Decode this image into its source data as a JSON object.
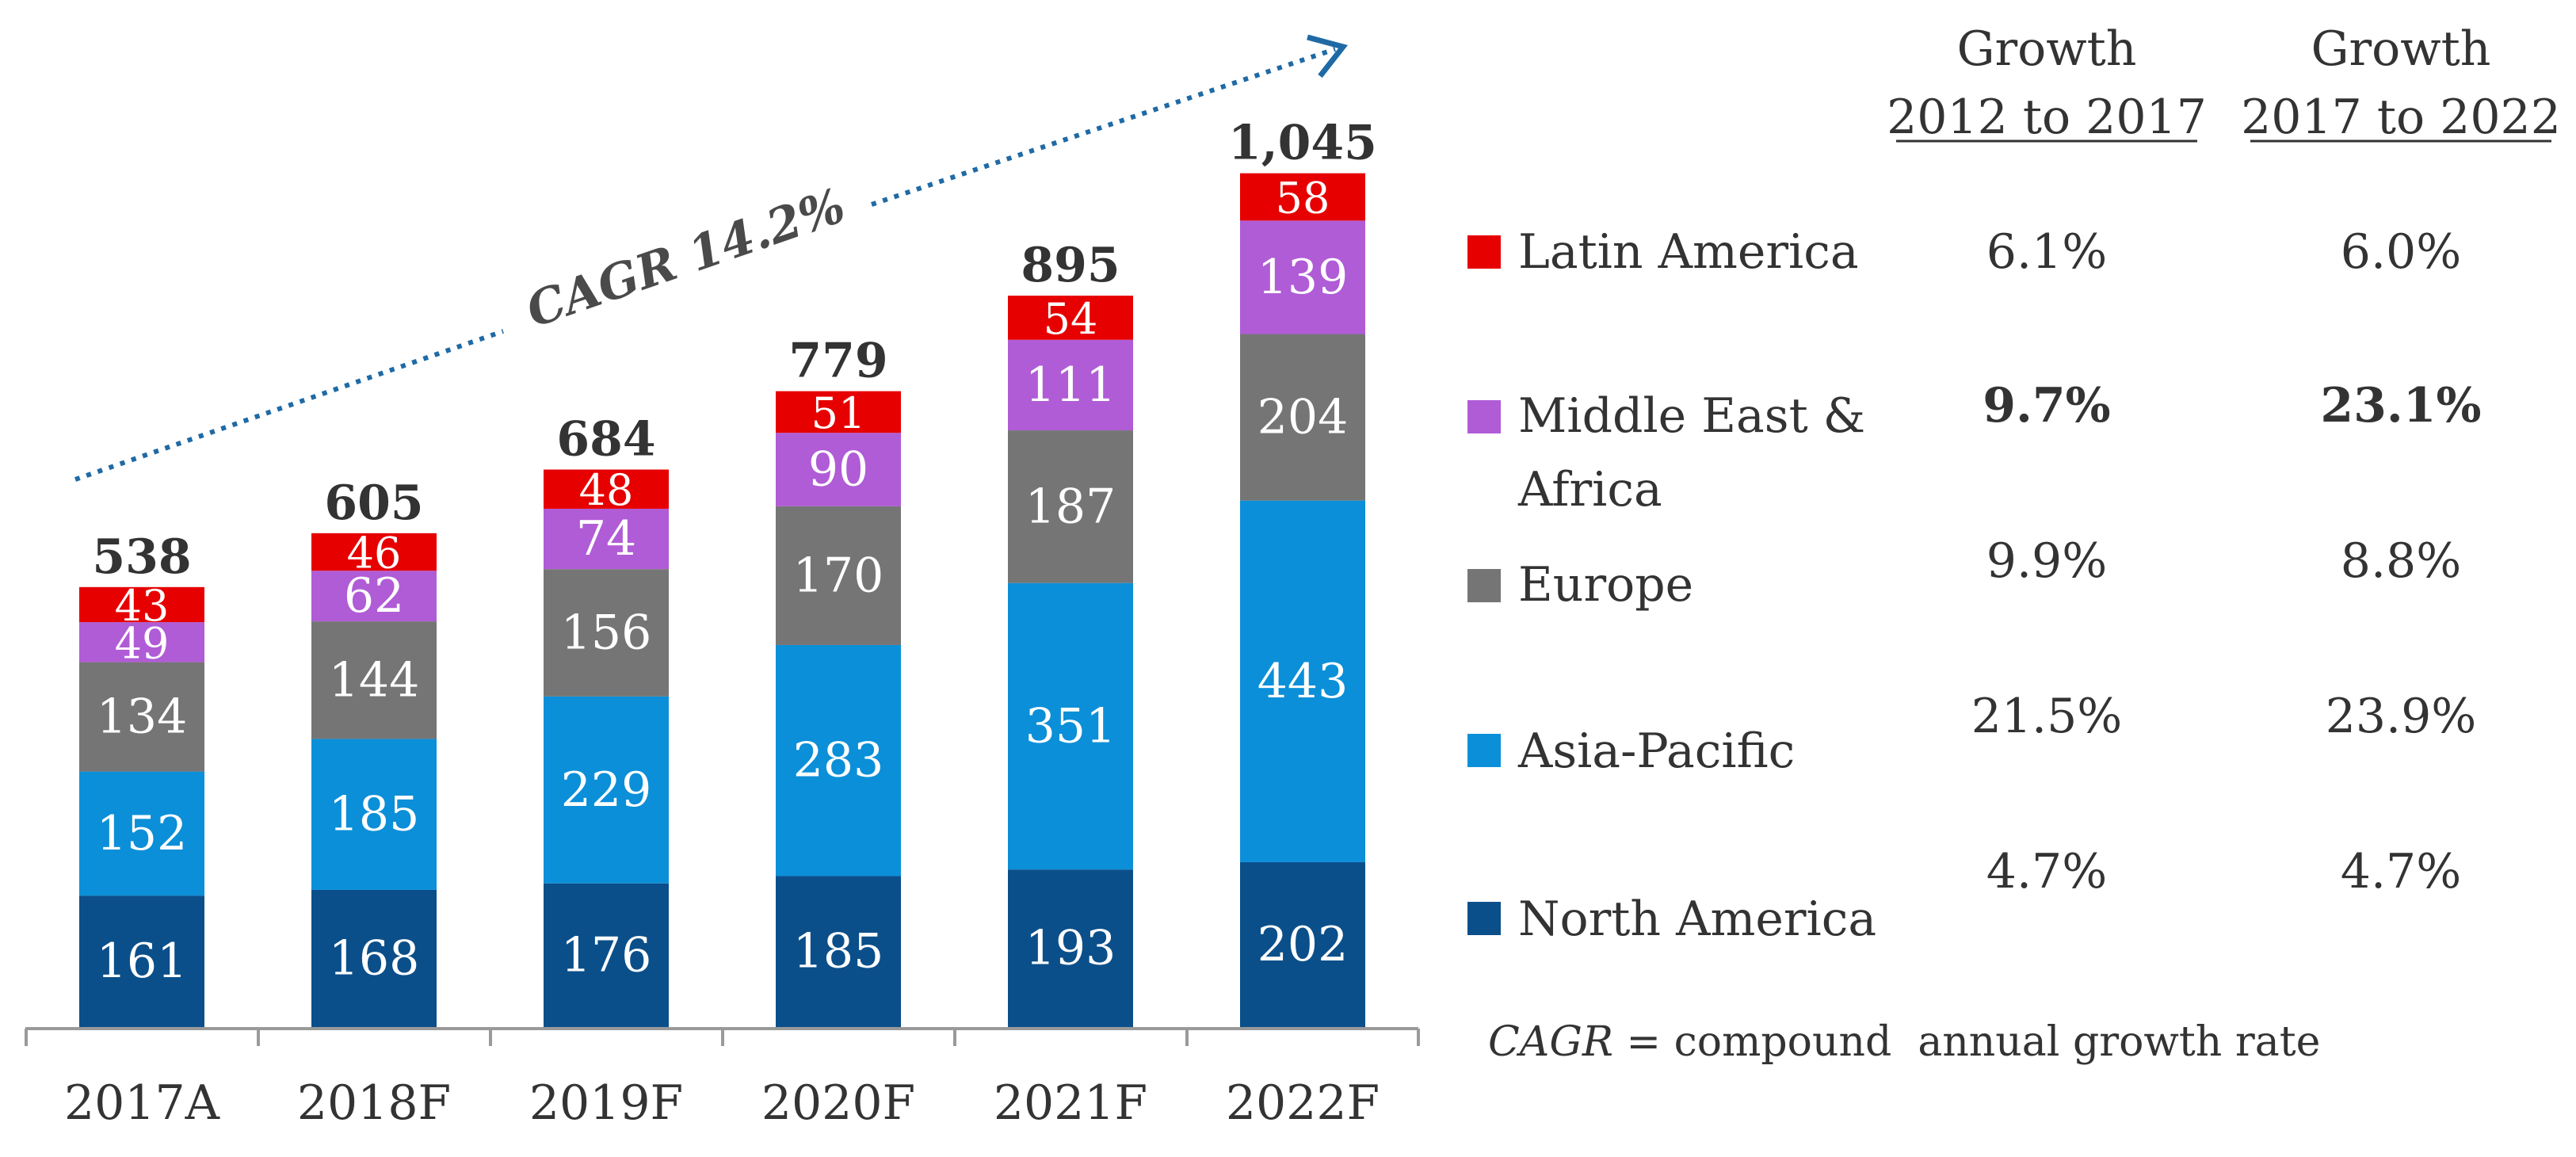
{
  "chart_data": {
    "type": "bar",
    "stacked": true,
    "categories": [
      "2017A",
      "2018F",
      "2019F",
      "2020F",
      "2021F",
      "2022F"
    ],
    "series": [
      {
        "name": "North America",
        "color": "#0b4f8a",
        "values": [
          161,
          168,
          176,
          185,
          193,
          202
        ]
      },
      {
        "name": "Asia-Pacific",
        "color": "#0b8fd8",
        "values": [
          152,
          185,
          229,
          283,
          351,
          443
        ]
      },
      {
        "name": "Europe",
        "color": "#757575",
        "values": [
          134,
          144,
          156,
          170,
          187,
          204
        ]
      },
      {
        "name": "Middle East & Africa",
        "color": "#b05cd6",
        "values": [
          49,
          62,
          74,
          90,
          111,
          139
        ]
      },
      {
        "name": "Latin America",
        "color": "#e60000",
        "values": [
          43,
          46,
          48,
          51,
          54,
          58
        ]
      }
    ],
    "totals": [
      "538",
      "605",
      "684",
      "779",
      "895",
      "1,045"
    ],
    "ylim": [
      0,
      1045
    ],
    "annotation": {
      "text": "CAGR 14.2%",
      "arrow_color": "#1f6aa5"
    },
    "growth_table": {
      "headers": [
        {
          "line1": "Growth",
          "line2": "2012 to 2017"
        },
        {
          "line1": "Growth",
          "line2": "2017 to 2022"
        }
      ],
      "rows": [
        {
          "region": "Latin America",
          "color": "#e60000",
          "g1": "6.1%",
          "g2": "6.0%",
          "bold": false
        },
        {
          "region_line1": "Middle East &",
          "region_line2": "Africa",
          "color": "#b05cd6",
          "g1": "9.7%",
          "g2": "23.1%",
          "bold": true
        },
        {
          "region": "Europe",
          "color": "#757575",
          "g1": "9.9%",
          "g2": "8.8%",
          "bold": false
        },
        {
          "region": "Asia-Pacific",
          "color": "#0b8fd8",
          "g1": "21.5%",
          "g2": "23.9%",
          "bold": false
        },
        {
          "region": "North America",
          "color": "#0b4f8a",
          "g1": "4.7%",
          "g2": "4.7%",
          "bold": false
        }
      ]
    },
    "footnote": {
      "abbr": "CAGR",
      "rest": " = compound  annual growth rate"
    }
  }
}
